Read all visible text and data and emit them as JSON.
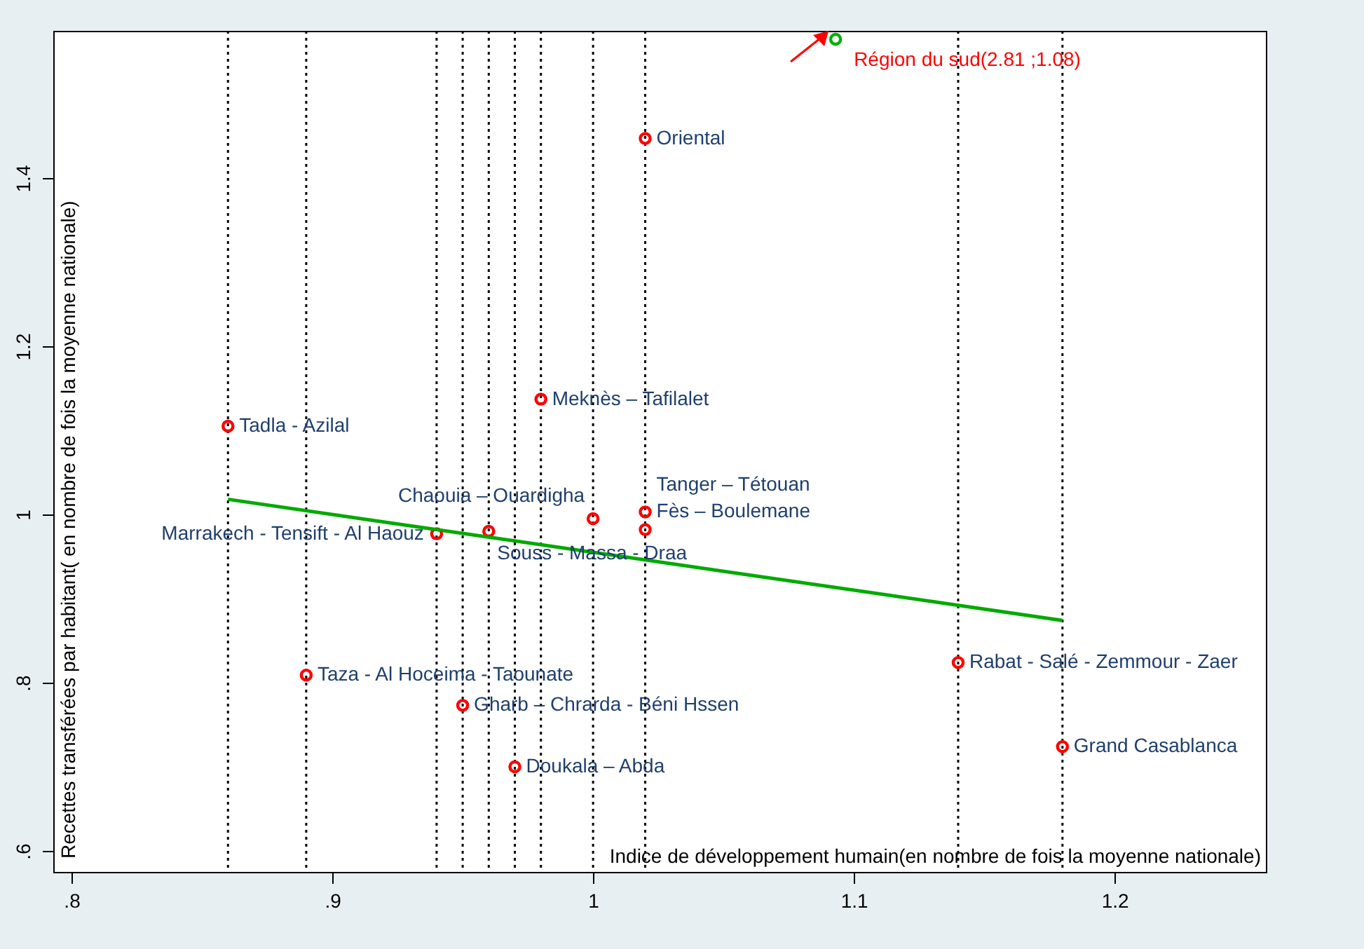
{
  "chart_data": {
    "type": "scatter",
    "xlabel": "Indice de développement humain(en nombre de fois la moyenne nationale)",
    "ylabel": "Recettes transférées par habitant( en nombre de fois la moyenne nationale)",
    "xlim": [
      0.793,
      1.258
    ],
    "ylim": [
      0.575,
      1.575
    ],
    "xticks": [
      {
        "value": 0.8,
        "label": ".8"
      },
      {
        "value": 0.9,
        "label": ".9"
      },
      1,
      1.1,
      1.2
    ],
    "yticks": [
      {
        "value": 0.6,
        "label": ".6"
      },
      {
        "value": 0.8,
        "label": ".8"
      },
      1,
      1.2,
      1.4
    ],
    "grid": false,
    "marker": "circle",
    "series": [
      {
        "color": "#ff0000",
        "x": [
          0.86,
          0.89,
          0.94,
          0.95,
          0.96,
          0.97,
          0.98,
          1.0,
          1.02,
          1.02,
          1.02,
          1.14,
          1.18
        ],
        "values": [
          1.105,
          0.809,
          0.977,
          0.773,
          0.98,
          0.7,
          1.137,
          0.995,
          1.003,
          0.982,
          1.447,
          0.824,
          0.724
        ]
      },
      {
        "color": "#00b000",
        "x": [
          1.093
        ],
        "values": [
          1.565
        ]
      },
      {
        "type": "line",
        "marker": "none",
        "color": "#00aa00",
        "x": [
          0.86,
          1.18
        ],
        "values": [
          1.018,
          0.874
        ]
      }
    ],
    "ref_lines": [
      {
        "axis": "x",
        "value": 0.86,
        "line_style": "dotted"
      },
      {
        "axis": "x",
        "value": 0.89,
        "line_style": "dotted"
      },
      {
        "axis": "x",
        "value": 0.94,
        "line_style": "dotted"
      },
      {
        "axis": "x",
        "value": 0.95,
        "line_style": "dotted"
      },
      {
        "axis": "x",
        "value": 0.96,
        "line_style": "dotted"
      },
      {
        "axis": "x",
        "value": 0.97,
        "line_style": "dotted"
      },
      {
        "axis": "x",
        "value": 0.98,
        "line_style": "dotted"
      },
      {
        "axis": "x",
        "value": 1.0,
        "line_style": "dotted"
      },
      {
        "axis": "x",
        "value": 1.02,
        "line_style": "dotted"
      },
      {
        "axis": "x",
        "value": 1.14,
        "line_style": "dotted"
      },
      {
        "axis": "x",
        "value": 1.18,
        "line_style": "dotted"
      }
    ],
    "annotations": [
      {
        "text": "Tadla -  Azilal",
        "x": 0.86,
        "y": 1.105
      },
      {
        "text": "Taza - Al Hoceima - Taounate",
        "x": 0.89,
        "y": 0.809
      },
      {
        "text": "Marrakech - Tensift - Al Haouz",
        "x": 0.94,
        "y": 0.977
      },
      {
        "text": "Gharb – Chrarda - Béni Hssen",
        "x": 0.95,
        "y": 0.773
      },
      {
        "text": "Souss - Massa - Draa",
        "x": 0.96,
        "y": 0.98
      },
      {
        "text": "Doukala – Abda",
        "x": 0.97,
        "y": 0.7
      },
      {
        "text": "Meknès – Tafilalet",
        "x": 0.98,
        "y": 1.137
      },
      {
        "text": "Chaouia – Ouardigha",
        "x": 1.0,
        "y": 0.995
      },
      {
        "text": "Fès – Boulemane",
        "x": 1.02,
        "y": 1.003
      },
      {
        "text": "Tanger – Tétouan",
        "x": 1.02,
        "y": 0.982
      },
      {
        "text": "Oriental",
        "x": 1.02,
        "y": 1.447
      },
      {
        "text": "Rabat - Salé - Zemmour - Zaer",
        "x": 1.14,
        "y": 0.824
      },
      {
        "text": "Grand Casablanca",
        "x": 1.18,
        "y": 0.724
      },
      {
        "text": "Région du sud(2.81 ;1.08)",
        "x": 1.093,
        "y": 1.565
      }
    ]
  }
}
